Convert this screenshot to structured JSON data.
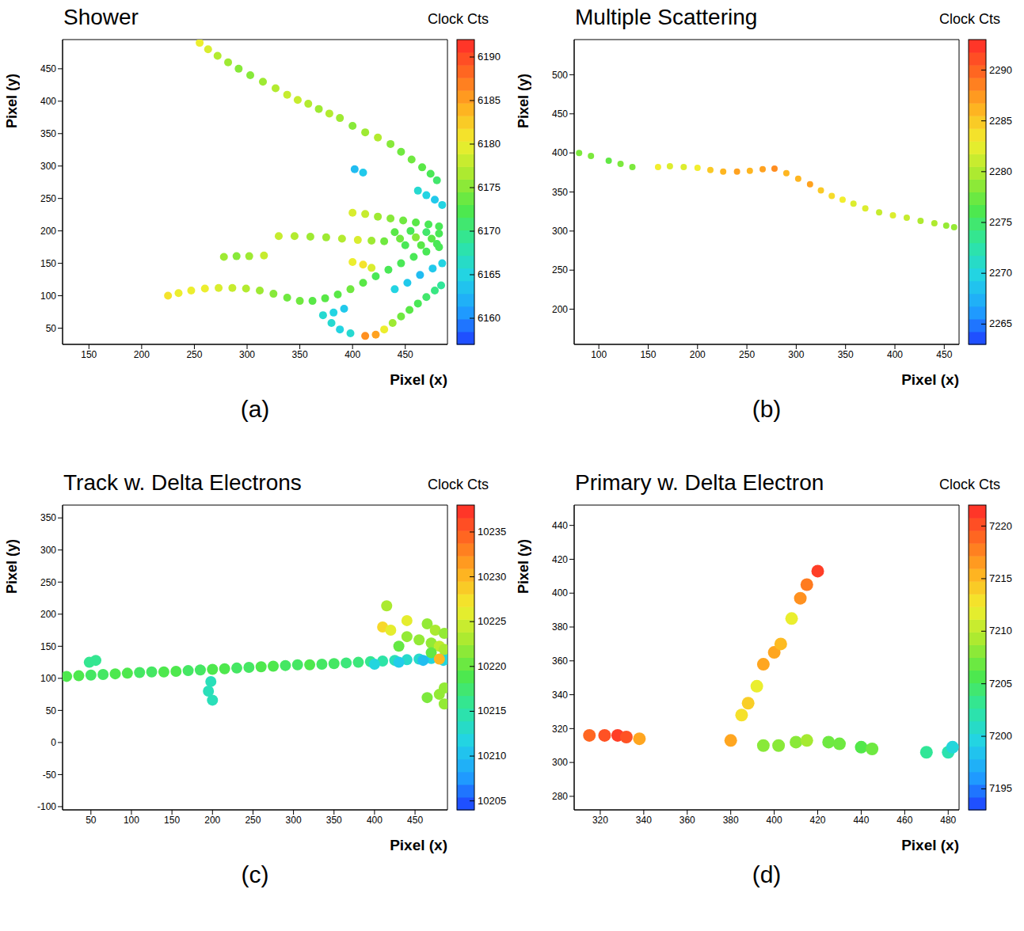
{
  "chart_data": [
    {
      "type": "scatter",
      "title": "Shower",
      "panel_label": "(a)",
      "x_label": "Pixel (x)",
      "y_label": "Pixel (y)",
      "xlim": [
        125,
        490
      ],
      "xticks": [
        150,
        200,
        250,
        300,
        350,
        400,
        450
      ],
      "ylim": [
        25,
        495
      ],
      "yticks": [
        50,
        100,
        150,
        200,
        250,
        300,
        350,
        400,
        450
      ],
      "colorbar": {
        "label": "Clock Cts",
        "range": [
          6157,
          6192
        ],
        "ticks": [
          6160,
          6165,
          6170,
          6175,
          6180,
          6185,
          6190
        ]
      },
      "points": [
        [
          255,
          490,
          6180
        ],
        [
          263,
          480,
          6179
        ],
        [
          272,
          470,
          6177
        ],
        [
          282,
          460,
          6176
        ],
        [
          292,
          450,
          6175
        ],
        [
          303,
          440,
          6175
        ],
        [
          315,
          430,
          6176
        ],
        [
          327,
          420,
          6177
        ],
        [
          338,
          410,
          6178
        ],
        [
          348,
          402,
          6178
        ],
        [
          358,
          396,
          6177
        ],
        [
          368,
          388,
          6176
        ],
        [
          378,
          381,
          6177
        ],
        [
          388,
          374,
          6176
        ],
        [
          400,
          362,
          6175
        ],
        [
          412,
          352,
          6176
        ],
        [
          424,
          344,
          6177
        ],
        [
          436,
          334,
          6175
        ],
        [
          446,
          322,
          6174
        ],
        [
          456,
          310,
          6174
        ],
        [
          466,
          298,
          6173
        ],
        [
          474,
          288,
          6172
        ],
        [
          480,
          278,
          6171
        ],
        [
          462,
          262,
          6166
        ],
        [
          470,
          255,
          6165
        ],
        [
          478,
          248,
          6164
        ],
        [
          485,
          240,
          6165
        ],
        [
          402,
          295,
          6163
        ],
        [
          410,
          290,
          6164
        ],
        [
          400,
          228,
          6179
        ],
        [
          412,
          226,
          6178
        ],
        [
          424,
          222,
          6176
        ],
        [
          436,
          219,
          6175
        ],
        [
          448,
          216,
          6174
        ],
        [
          460,
          213,
          6173
        ],
        [
          472,
          210,
          6172
        ],
        [
          482,
          207,
          6172
        ],
        [
          440,
          198,
          6173
        ],
        [
          455,
          200,
          6172
        ],
        [
          470,
          198,
          6171
        ],
        [
          482,
          196,
          6172
        ],
        [
          445,
          188,
          6174
        ],
        [
          460,
          190,
          6175
        ],
        [
          475,
          188,
          6173
        ],
        [
          450,
          178,
          6172
        ],
        [
          465,
          178,
          6173
        ],
        [
          480,
          180,
          6172
        ],
        [
          330,
          192,
          6178
        ],
        [
          345,
          192,
          6177
        ],
        [
          360,
          191,
          6176
        ],
        [
          375,
          190,
          6176
        ],
        [
          390,
          188,
          6177
        ],
        [
          405,
          186,
          6179
        ],
        [
          418,
          185,
          6176
        ],
        [
          430,
          184,
          6174
        ],
        [
          278,
          160,
          6176
        ],
        [
          290,
          161,
          6175
        ],
        [
          302,
          161,
          6176
        ],
        [
          316,
          162,
          6178
        ],
        [
          400,
          152,
          6180
        ],
        [
          410,
          148,
          6181
        ],
        [
          418,
          143,
          6179
        ],
        [
          225,
          100,
          6181
        ],
        [
          235,
          104,
          6180
        ],
        [
          247,
          108,
          6180
        ],
        [
          260,
          111,
          6180
        ],
        [
          273,
          112,
          6179
        ],
        [
          286,
          112,
          6178
        ],
        [
          299,
          111,
          6177
        ],
        [
          312,
          108,
          6176
        ],
        [
          325,
          103,
          6175
        ],
        [
          338,
          97,
          6174
        ],
        [
          350,
          92,
          6174
        ],
        [
          362,
          92,
          6173
        ],
        [
          374,
          96,
          6173
        ],
        [
          386,
          102,
          6173
        ],
        [
          398,
          110,
          6174
        ],
        [
          410,
          120,
          6173
        ],
        [
          422,
          130,
          6172
        ],
        [
          434,
          140,
          6172
        ],
        [
          446,
          150,
          6172
        ],
        [
          458,
          160,
          6172
        ],
        [
          470,
          168,
          6172
        ],
        [
          482,
          175,
          6172
        ],
        [
          372,
          70,
          6166
        ],
        [
          382,
          74,
          6165
        ],
        [
          392,
          80,
          6164
        ],
        [
          380,
          58,
          6166
        ],
        [
          388,
          48,
          6165
        ],
        [
          398,
          42,
          6166
        ],
        [
          440,
          110,
          6165
        ],
        [
          452,
          120,
          6164
        ],
        [
          464,
          132,
          6163
        ],
        [
          476,
          142,
          6164
        ],
        [
          485,
          150,
          6165
        ],
        [
          412,
          38,
          6186
        ],
        [
          422,
          40,
          6185
        ],
        [
          430,
          48,
          6180
        ],
        [
          438,
          58,
          6176
        ],
        [
          446,
          68,
          6174
        ],
        [
          454,
          78,
          6173
        ],
        [
          462,
          88,
          6172
        ],
        [
          470,
          98,
          6171
        ],
        [
          478,
          108,
          6170
        ],
        [
          484,
          116,
          6169
        ]
      ]
    },
    {
      "type": "scatter",
      "title": "Multiple Scattering",
      "panel_label": "(b)",
      "x_label": "Pixel (x)",
      "y_label": "Pixel (y)",
      "xlim": [
        75,
        465
      ],
      "xticks": [
        100,
        150,
        200,
        250,
        300,
        350,
        400,
        450
      ],
      "ylim": [
        155,
        545
      ],
      "yticks": [
        200,
        250,
        300,
        350,
        400,
        450,
        500
      ],
      "colorbar": {
        "label": "Clock Cts",
        "range": [
          2263,
          2293
        ],
        "ticks": [
          2265,
          2270,
          2275,
          2280,
          2285,
          2290
        ]
      },
      "points": [
        [
          80,
          400,
          2278
        ],
        [
          92,
          396,
          2278
        ],
        [
          110,
          390,
          2277
        ],
        [
          122,
          386,
          2278
        ],
        [
          134,
          382,
          2278
        ],
        [
          160,
          382,
          2283
        ],
        [
          172,
          383,
          2282
        ],
        [
          186,
          382,
          2282
        ],
        [
          200,
          381,
          2283
        ],
        [
          213,
          378,
          2285
        ],
        [
          226,
          376,
          2286
        ],
        [
          240,
          376,
          2287
        ],
        [
          253,
          377,
          2286
        ],
        [
          266,
          379,
          2287
        ],
        [
          278,
          380,
          2288
        ],
        [
          290,
          374,
          2286
        ],
        [
          302,
          367,
          2286
        ],
        [
          314,
          360,
          2287
        ],
        [
          325,
          352,
          2285
        ],
        [
          336,
          345,
          2284
        ],
        [
          347,
          340,
          2283
        ],
        [
          358,
          335,
          2282
        ],
        [
          370,
          329,
          2282
        ],
        [
          384,
          324,
          2281
        ],
        [
          398,
          320,
          2282
        ],
        [
          412,
          317,
          2281
        ],
        [
          426,
          313,
          2280
        ],
        [
          440,
          310,
          2280
        ],
        [
          452,
          307,
          2279
        ],
        [
          460,
          305,
          2279
        ]
      ]
    },
    {
      "type": "scatter",
      "title": "Track w. Delta Electrons",
      "panel_label": "(c)",
      "x_label": "Pixel (x)",
      "y_label": "Pixel (y)",
      "xlim": [
        15,
        490
      ],
      "xticks": [
        50,
        100,
        150,
        200,
        250,
        300,
        350,
        400,
        450
      ],
      "ylim": [
        -105,
        370
      ],
      "yticks": [
        -100,
        -50,
        0,
        50,
        100,
        150,
        200,
        250,
        300,
        350
      ],
      "colorbar": {
        "label": "Clock Cts",
        "range": [
          10204,
          10238
        ],
        "ticks": [
          10205,
          10210,
          10215,
          10220,
          10225,
          10230,
          10235
        ]
      },
      "points": [
        [
          20,
          103,
          10219
        ],
        [
          35,
          104,
          10219
        ],
        [
          50,
          105,
          10218
        ],
        [
          65,
          106,
          10218
        ],
        [
          80,
          107,
          10219
        ],
        [
          95,
          108,
          10219
        ],
        [
          110,
          109,
          10218
        ],
        [
          125,
          110,
          10218
        ],
        [
          140,
          110,
          10219
        ],
        [
          155,
          111,
          10219
        ],
        [
          170,
          112,
          10218
        ],
        [
          185,
          113,
          10218
        ],
        [
          200,
          114,
          10219
        ],
        [
          215,
          115,
          10219
        ],
        [
          230,
          116,
          10218
        ],
        [
          245,
          117,
          10218
        ],
        [
          260,
          118,
          10219
        ],
        [
          275,
          119,
          10219
        ],
        [
          290,
          120,
          10218
        ],
        [
          305,
          121,
          10218
        ],
        [
          320,
          121,
          10219
        ],
        [
          335,
          122,
          10218
        ],
        [
          350,
          123,
          10218
        ],
        [
          365,
          124,
          10217
        ],
        [
          380,
          125,
          10217
        ],
        [
          395,
          126,
          10216
        ],
        [
          410,
          127,
          10215
        ],
        [
          425,
          128,
          10214
        ],
        [
          440,
          129,
          10213
        ],
        [
          455,
          130,
          10213
        ],
        [
          470,
          131,
          10212
        ],
        [
          485,
          132,
          10213
        ],
        [
          400,
          122,
          10212
        ],
        [
          430,
          125,
          10211
        ],
        [
          460,
          128,
          10210
        ],
        [
          485,
          128,
          10212
        ],
        [
          48,
          125,
          10216
        ],
        [
          56,
          128,
          10216
        ],
        [
          198,
          95,
          10214
        ],
        [
          195,
          80,
          10214
        ],
        [
          200,
          66,
          10214
        ],
        [
          440,
          190,
          10226
        ],
        [
          410,
          180,
          10228
        ],
        [
          420,
          175,
          10226
        ],
        [
          440,
          165,
          10222
        ],
        [
          455,
          160,
          10222
        ],
        [
          470,
          155,
          10222
        ],
        [
          480,
          150,
          10224
        ],
        [
          486,
          145,
          10223
        ],
        [
          430,
          150,
          10220
        ],
        [
          470,
          140,
          10220
        ],
        [
          465,
          185,
          10222
        ],
        [
          475,
          175,
          10223
        ],
        [
          486,
          170,
          10222
        ],
        [
          415,
          213,
          10223
        ],
        [
          480,
          130,
          10230
        ],
        [
          486,
          60,
          10222
        ],
        [
          480,
          75,
          10222
        ],
        [
          486,
          85,
          10222
        ],
        [
          465,
          70,
          10221
        ]
      ]
    },
    {
      "type": "scatter",
      "title": "Primary w. Delta Electron",
      "panel_label": "(d)",
      "x_label": "Pixel (x)",
      "y_label": "Pixel (y)",
      "xlim": [
        308,
        485
      ],
      "xticks": [
        320,
        340,
        360,
        380,
        400,
        420,
        440,
        460,
        480
      ],
      "ylim": [
        272,
        452
      ],
      "yticks": [
        280,
        300,
        320,
        340,
        360,
        380,
        400,
        420,
        440
      ],
      "colorbar": {
        "label": "Clock Cts",
        "range": [
          7193,
          7222
        ],
        "ticks": [
          7195,
          7200,
          7205,
          7210,
          7215,
          7220
        ]
      },
      "points": [
        [
          315,
          316,
          7219
        ],
        [
          322,
          316,
          7220
        ],
        [
          328,
          316,
          7221
        ],
        [
          332,
          315,
          7220
        ],
        [
          338,
          314,
          7216
        ],
        [
          380,
          313,
          7216
        ],
        [
          385,
          328,
          7213
        ],
        [
          388,
          335,
          7214
        ],
        [
          392,
          345,
          7212
        ],
        [
          395,
          358,
          7216
        ],
        [
          400,
          365,
          7216
        ],
        [
          403,
          370,
          7215
        ],
        [
          408,
          385,
          7212
        ],
        [
          412,
          397,
          7217
        ],
        [
          415,
          405,
          7218
        ],
        [
          420,
          413,
          7221
        ],
        [
          395,
          310,
          7208
        ],
        [
          402,
          310,
          7208
        ],
        [
          410,
          312,
          7208
        ],
        [
          415,
          313,
          7209
        ],
        [
          425,
          312,
          7207
        ],
        [
          430,
          311,
          7207
        ],
        [
          440,
          309,
          7206
        ],
        [
          445,
          308,
          7207
        ],
        [
          470,
          306,
          7203
        ],
        [
          480,
          306,
          7202
        ],
        [
          482,
          309,
          7200
        ]
      ]
    }
  ]
}
